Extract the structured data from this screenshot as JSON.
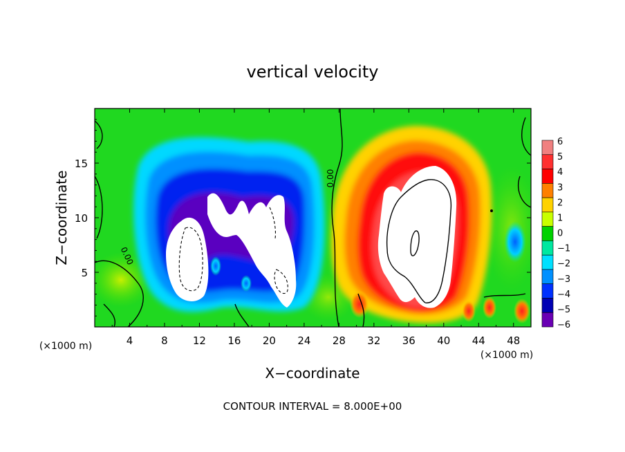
{
  "chart_data": {
    "type": "heatmap",
    "title": "vertical velocity",
    "xlabel": "X−coordinate",
    "ylabel": "Z−coordinate",
    "x_unit_left": "(×1000 m)",
    "x_unit_right": "(×1000 m)",
    "xlim": [
      0,
      50
    ],
    "ylim": [
      0,
      20
    ],
    "x_ticks": [
      4,
      8,
      12,
      16,
      20,
      24,
      28,
      32,
      36,
      40,
      44,
      48
    ],
    "x_tick_labels": [
      "4",
      "8",
      "12",
      "16",
      "20",
      "24",
      "28",
      "32",
      "36",
      "40",
      "44",
      "48"
    ],
    "y_ticks": [
      5,
      10,
      15
    ],
    "y_tick_labels": [
      "5",
      "10",
      "15"
    ],
    "colorbar": {
      "levels": [
        6,
        5,
        4,
        3,
        2,
        1,
        0,
        -1,
        -2,
        -3,
        -4,
        -5,
        -6
      ],
      "labels": [
        "6",
        "5",
        "4",
        "3",
        "2",
        "1",
        "0",
        "−1",
        "−2",
        "−3",
        "−4",
        "−5",
        "−6"
      ],
      "colors": [
        "#f08080",
        "#ff3030",
        "#ff0000",
        "#ff8000",
        "#ffd200",
        "#c8ff00",
        "#00d200",
        "#00e8a0",
        "#00e0ff",
        "#0090ff",
        "#0030ff",
        "#0000b4",
        "#6a00b4"
      ]
    },
    "contour_labels": [
      "0.00",
      "0.00"
    ],
    "footer": "CONTOUR INTERVAL = 8.000E+00",
    "features": [
      {
        "kind": "downdraft",
        "x": 11,
        "z": 6.5,
        "w": -6
      },
      {
        "kind": "downdraft",
        "x": 20,
        "z": 7.5,
        "w": -6
      },
      {
        "kind": "updraft",
        "x": 37,
        "z": 8.5,
        "w": 6
      }
    ]
  }
}
